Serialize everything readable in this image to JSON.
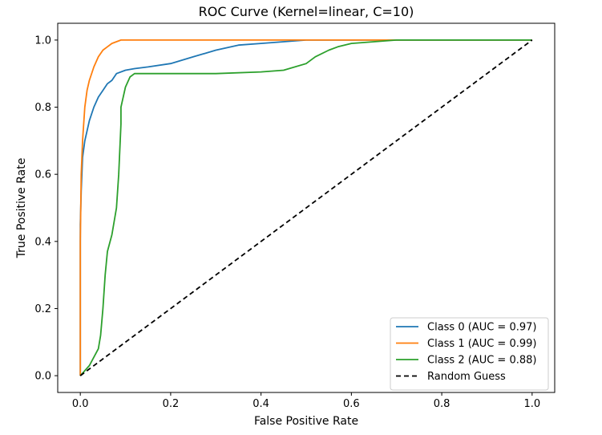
{
  "chart_data": {
    "type": "line",
    "title": "ROC Curve (Kernel=linear, C=10)",
    "xlabel": "False Positive Rate",
    "ylabel": "True Positive Rate",
    "xlim": [
      -0.05,
      1.05
    ],
    "ylim": [
      -0.05,
      1.05
    ],
    "xticks": [
      0.0,
      0.2,
      0.4,
      0.6,
      0.8,
      1.0
    ],
    "xtick_labels": [
      "0.0",
      "0.2",
      "0.4",
      "0.6",
      "0.8",
      "1.0"
    ],
    "yticks": [
      0.0,
      0.2,
      0.4,
      0.6,
      0.8,
      1.0
    ],
    "ytick_labels": [
      "0.0",
      "0.2",
      "0.4",
      "0.6",
      "0.8",
      "1.0"
    ],
    "grid": false,
    "legend_position": "lower-right",
    "series": [
      {
        "name": "Class 0 (AUC = 0.97)",
        "color": "#1f77b4",
        "style": "solid",
        "x": [
          0.0,
          0.0,
          0.002,
          0.005,
          0.01,
          0.02,
          0.03,
          0.04,
          0.05,
          0.06,
          0.07,
          0.08,
          0.1,
          0.12,
          0.15,
          0.2,
          0.25,
          0.3,
          0.35,
          0.4,
          0.45,
          0.5,
          0.6,
          0.7,
          0.8,
          1.0
        ],
        "y": [
          0.0,
          0.45,
          0.55,
          0.65,
          0.7,
          0.76,
          0.8,
          0.83,
          0.85,
          0.87,
          0.88,
          0.9,
          0.91,
          0.915,
          0.92,
          0.93,
          0.95,
          0.97,
          0.985,
          0.99,
          0.995,
          1.0,
          1.0,
          1.0,
          1.0,
          1.0
        ]
      },
      {
        "name": "Class 1 (AUC = 0.99)",
        "color": "#ff7f0e",
        "style": "solid",
        "x": [
          0.0,
          0.0,
          0.002,
          0.005,
          0.01,
          0.015,
          0.02,
          0.03,
          0.04,
          0.05,
          0.06,
          0.07,
          0.09,
          0.2,
          0.4,
          0.6,
          0.8,
          1.0
        ],
        "y": [
          0.0,
          0.4,
          0.6,
          0.7,
          0.8,
          0.85,
          0.88,
          0.92,
          0.95,
          0.97,
          0.98,
          0.99,
          1.0,
          1.0,
          1.0,
          1.0,
          1.0,
          1.0
        ]
      },
      {
        "name": "Class 2 (AUC = 0.88)",
        "color": "#2ca02c",
        "style": "solid",
        "x": [
          0.0,
          0.02,
          0.04,
          0.045,
          0.05,
          0.055,
          0.06,
          0.07,
          0.08,
          0.085,
          0.09,
          0.09,
          0.1,
          0.11,
          0.12,
          0.2,
          0.3,
          0.4,
          0.45,
          0.5,
          0.52,
          0.55,
          0.57,
          0.6,
          0.65,
          0.7,
          0.8,
          1.0
        ],
        "y": [
          0.0,
          0.03,
          0.08,
          0.12,
          0.2,
          0.3,
          0.37,
          0.42,
          0.5,
          0.6,
          0.75,
          0.8,
          0.86,
          0.89,
          0.9,
          0.9,
          0.9,
          0.905,
          0.91,
          0.93,
          0.95,
          0.97,
          0.98,
          0.99,
          0.995,
          1.0,
          1.0,
          1.0
        ]
      },
      {
        "name": "Random Guess",
        "color": "#000000",
        "style": "dashed",
        "x": [
          0.0,
          1.0
        ],
        "y": [
          0.0,
          1.0
        ]
      }
    ]
  }
}
